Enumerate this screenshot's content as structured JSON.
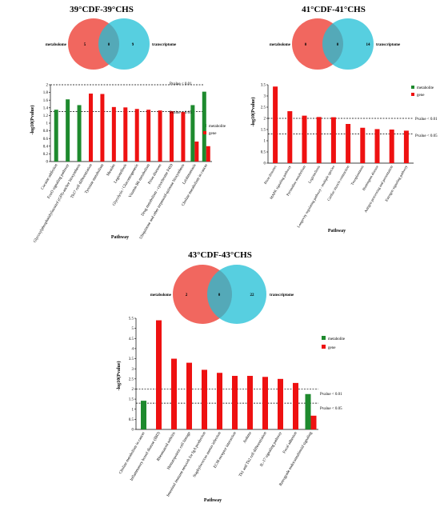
{
  "figure": {
    "panels": [
      {
        "title": "39°CDF-39°CHS",
        "venn": {
          "left_label": "metabolome",
          "right_label": "transcriptome",
          "left_only": "5",
          "overlap": "0",
          "right_only": "9"
        },
        "legend": {
          "metabolite": "metabolite",
          "gene": "gene"
        },
        "threshold_labels": {
          "p01": "Pvalue < 0.01",
          "p05": "Pvalue < 0.05"
        },
        "xlabel": "Pathway",
        "ylabel": "-log10(Pvalue)"
      },
      {
        "title": "41°CDF-41°CHS",
        "venn": {
          "left_label": "metabolome",
          "right_label": "transcriptome",
          "left_only": "0",
          "overlap": "0",
          "right_only": "14"
        },
        "legend": {
          "metabolite": "metabolite",
          "gene": "gene"
        },
        "threshold_labels": {
          "p01": "Pvalue < 0.01",
          "p05": "Pvalue < 0.05"
        },
        "xlabel": "Pathway",
        "ylabel": "-log10(Pvalue)"
      },
      {
        "title": "43°CDF-43°CHS",
        "venn": {
          "left_label": "metabolome",
          "right_label": "transcriptome",
          "left_only": "2",
          "overlap": "0",
          "right_only": "22"
        },
        "legend": {
          "metabolite": "metabolite",
          "gene": "gene"
        },
        "threshold_labels": {
          "p01": "Pvalue < 0.01",
          "p05": "Pvalue < 0.05"
        },
        "xlabel": "Pathway",
        "ylabel": "-log10(Pvalue)"
      }
    ]
  },
  "chart_data": [
    {
      "type": "bar",
      "title": "39°CDF-39°CHS",
      "xlabel": "Pathway",
      "ylabel": "-log10(Pvalue)",
      "ylim": [
        0,
        2
      ],
      "yticks": [
        0,
        0.2,
        0.4,
        0.6,
        0.8,
        1,
        1.2,
        1.4,
        1.6,
        1.8,
        2
      ],
      "threshold_lines": [
        2.0,
        1.3
      ],
      "colors": {
        "metabolite": "#1e8a2e",
        "gene": "#ee1111"
      },
      "legend_position": "right",
      "categories": [
        "Cocaine addiction",
        "FoxO signaling pathway",
        "Glycosylphosphatidylinositol (GPI)-anchor biosynthesis",
        "Th17 cell differentiation",
        "Tyrosine metabolism",
        "Measles",
        "Legionellosis",
        "Glycolysis / Gluconeogenesis",
        "Vitamin B6 metabolism",
        "Prion diseases",
        "Drug metabolism - cytochrome P450",
        "Ubiquinone and other terpenoid-quinone biosynthesis",
        "Leishmaniasis",
        "Choline metabolism in cancer"
      ],
      "series": [
        {
          "name": "metabolite",
          "values": [
            1.35,
            1.62,
            1.47,
            null,
            null,
            null,
            null,
            null,
            null,
            null,
            null,
            null,
            1.47,
            1.82
          ]
        },
        {
          "name": "gene",
          "values": [
            null,
            null,
            null,
            1.77,
            1.76,
            1.42,
            1.41,
            1.37,
            1.35,
            1.33,
            1.31,
            1.29,
            0.52,
            0.4
          ]
        }
      ]
    },
    {
      "type": "bar",
      "title": "41°CDF-41°CHS",
      "xlabel": "Pathway",
      "ylabel": "-log10(Pvalue)",
      "ylim": [
        0,
        3.5
      ],
      "yticks": [
        0,
        0.5,
        1,
        1.5,
        2,
        2.5,
        3,
        3.5
      ],
      "threshold_lines": [
        2.0,
        1.3
      ],
      "colors": {
        "metabolite": "#1e8a2e",
        "gene": "#ee1111"
      },
      "legend_position": "top-right",
      "categories": [
        "Prion diseases",
        "MAPK signaling pathway",
        "Pyrimidine metabolism",
        "Legionellosis",
        "Longevity regulating pathway - multiple species",
        "Cardiac muscle contraction",
        "Toxoplasmosis",
        "Huntington disease",
        "Antigen processing and presentation",
        "Estrogen signaling pathway"
      ],
      "series": [
        {
          "name": "metabolite",
          "values": [
            null,
            null,
            null,
            null,
            null,
            null,
            null,
            null,
            null,
            null
          ]
        },
        {
          "name": "gene",
          "values": [
            3.42,
            2.32,
            2.12,
            2.06,
            2.05,
            1.75,
            1.58,
            1.52,
            1.5,
            1.45
          ]
        }
      ]
    },
    {
      "type": "bar",
      "title": "43°CDF-43°CHS",
      "xlabel": "Pathway",
      "ylabel": "-log10(Pvalue)",
      "ylim": [
        0,
        5.5
      ],
      "yticks": [
        0,
        0.5,
        1,
        1.5,
        2,
        2.5,
        3,
        3.5,
        4,
        4.5,
        5,
        5.5
      ],
      "threshold_lines": [
        2.0,
        1.3
      ],
      "colors": {
        "metabolite": "#1e8a2e",
        "gene": "#ee1111"
      },
      "legend_position": "top-right",
      "categories": [
        "Choline metabolism in cancer",
        "Inflammatory bowel disease (IBD)",
        "Rheumatoid arthritis",
        "Hematopoietic cell lineage",
        "Intestinal immune network for IgA production",
        "Staphylococcus aureus infection",
        "ECM-receptor interaction",
        "Asthma",
        "Th1 and Th2 cell differentiation",
        "IL-17 signaling pathway",
        "Focal adhesion",
        "Retrograde endocannabinoid signaling"
      ],
      "series": [
        {
          "name": "metabolite",
          "values": [
            1.42,
            null,
            null,
            null,
            null,
            null,
            null,
            null,
            null,
            null,
            null,
            1.75
          ]
        },
        {
          "name": "gene",
          "values": [
            null,
            5.4,
            3.5,
            3.3,
            2.95,
            2.8,
            2.65,
            2.65,
            2.6,
            2.5,
            2.3,
            0.68
          ]
        }
      ]
    }
  ]
}
